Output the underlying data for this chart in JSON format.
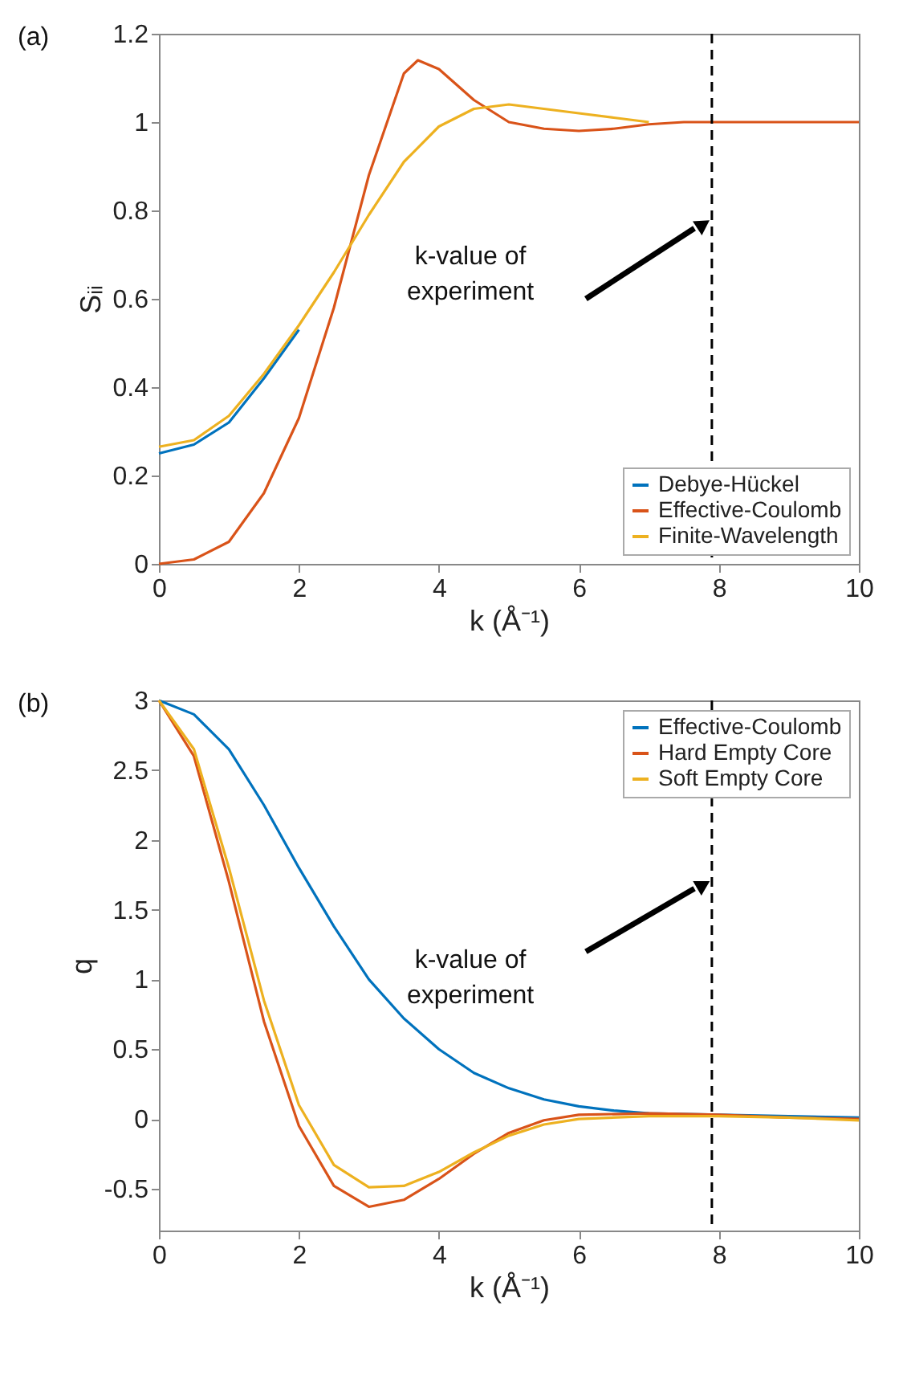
{
  "chart_data": [
    {
      "type": "line",
      "title": "(a)",
      "xlabel": "k (Å⁻¹)",
      "ylabel": "Sᵢᵢ",
      "xlim": [
        0,
        10
      ],
      "xticks": [
        0,
        2,
        4,
        6,
        8,
        10
      ],
      "ylim": [
        0,
        1.2
      ],
      "yticks": [
        0,
        0.2,
        0.4,
        0.6,
        0.8,
        1,
        1.2
      ],
      "grid": false,
      "legend": "bottom right",
      "line_style": "solid",
      "ref_lines": [
        {
          "axis": "x",
          "value": 7.9,
          "color": "#000000",
          "line_style": "dashed"
        }
      ],
      "annotations": [
        "k-value of\nexperiment"
      ],
      "series": [
        {
          "name": "Debye-Hückel",
          "color": "#0072bd",
          "x": [
            0,
            0.5,
            1,
            1.5,
            2
          ],
          "values": [
            0.25,
            0.27,
            0.32,
            0.42,
            0.53
          ]
        },
        {
          "name": "Effective-Coulomb",
          "color": "#d95319",
          "x": [
            0,
            0.5,
            1,
            1.5,
            2,
            2.5,
            3,
            3.5,
            3.7,
            4,
            4.5,
            5,
            5.5,
            6,
            6.5,
            7,
            7.5,
            8,
            9,
            10
          ],
          "values": [
            0,
            0.01,
            0.05,
            0.16,
            0.33,
            0.58,
            0.88,
            1.11,
            1.14,
            1.12,
            1.05,
            1.0,
            0.985,
            0.98,
            0.985,
            0.995,
            1.0,
            1.0,
            1.0,
            1.0
          ]
        },
        {
          "name": "Finite-Wavelength",
          "color": "#edb120",
          "x": [
            0,
            0.5,
            1,
            1.5,
            2,
            2.5,
            3,
            3.5,
            4,
            4.5,
            5,
            5.5,
            6,
            6.5,
            7
          ],
          "values": [
            0.265,
            0.28,
            0.335,
            0.43,
            0.54,
            0.66,
            0.79,
            0.91,
            0.99,
            1.03,
            1.04,
            1.03,
            1.02,
            1.01,
            1.0
          ]
        }
      ]
    },
    {
      "type": "line",
      "title": "(b)",
      "xlabel": "k (Å⁻¹)",
      "ylabel": "q",
      "xlim": [
        0,
        10
      ],
      "xticks": [
        0,
        2,
        4,
        6,
        8,
        10
      ],
      "ylim": [
        -0.8,
        3
      ],
      "yticks": [
        -0.5,
        0,
        0.5,
        1,
        1.5,
        2,
        2.5,
        3
      ],
      "grid": false,
      "legend": "top right",
      "line_style": "solid",
      "ref_lines": [
        {
          "axis": "x",
          "value": 7.9,
          "color": "#000000",
          "line_style": "dashed"
        }
      ],
      "annotations": [
        "k-value of\nexperiment"
      ],
      "series": [
        {
          "name": "Effective-Coulomb",
          "color": "#0072bd",
          "x": [
            0,
            0.5,
            1,
            1.5,
            2,
            2.5,
            3,
            3.5,
            4,
            4.5,
            5,
            5.5,
            6,
            6.5,
            7,
            9,
            10
          ],
          "values": [
            3,
            2.9,
            2.65,
            2.25,
            1.8,
            1.38,
            1.0,
            0.72,
            0.5,
            0.33,
            0.22,
            0.14,
            0.09,
            0.06,
            0.04,
            0.02,
            0.01
          ]
        },
        {
          "name": "Hard Empty Core",
          "color": "#d95319",
          "x": [
            0,
            0.5,
            1,
            1.5,
            2,
            2.5,
            3,
            3.5,
            4,
            4.5,
            5,
            5.5,
            6,
            7,
            8,
            9,
            10
          ],
          "values": [
            3,
            2.6,
            1.7,
            0.7,
            -0.05,
            -0.48,
            -0.63,
            -0.58,
            -0.43,
            -0.25,
            -0.1,
            -0.01,
            0.03,
            0.04,
            0.03,
            0.01,
            0
          ]
        },
        {
          "name": "Soft Empty Core",
          "color": "#edb120",
          "x": [
            0,
            0.5,
            1,
            1.5,
            2,
            2.5,
            3,
            3.5,
            4,
            4.5,
            5,
            5.5,
            6,
            7,
            8,
            9,
            10
          ],
          "values": [
            3,
            2.65,
            1.8,
            0.85,
            0.1,
            -0.33,
            -0.49,
            -0.48,
            -0.38,
            -0.24,
            -0.12,
            -0.04,
            0.0,
            0.02,
            0.02,
            0.01,
            -0.01
          ]
        }
      ]
    }
  ]
}
